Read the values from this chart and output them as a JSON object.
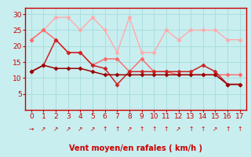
{
  "title": "",
  "xlabel": "Vent moyen/en rafales ( km/h )",
  "x": [
    0,
    1,
    2,
    3,
    4,
    5,
    6,
    7,
    8,
    9,
    10,
    11,
    12,
    13,
    14,
    15,
    16,
    17
  ],
  "line1_y": [
    22,
    25,
    29,
    29,
    25,
    29,
    25,
    18,
    29,
    18,
    18,
    25,
    22,
    25,
    25,
    25,
    22,
    22
  ],
  "line2_y": [
    22,
    25,
    22,
    18,
    18,
    14,
    16,
    16,
    12,
    16,
    12,
    12,
    11,
    11,
    11,
    11,
    11,
    11
  ],
  "line3_y": [
    12,
    14,
    22,
    18,
    18,
    14,
    13,
    8,
    12,
    12,
    12,
    12,
    12,
    12,
    14,
    12,
    8,
    8
  ],
  "line4_y": [
    12,
    14,
    13,
    13,
    13,
    12,
    11,
    11,
    11,
    11,
    11,
    11,
    11,
    11,
    11,
    11,
    8,
    8
  ],
  "line1_color": "#ffaaaa",
  "line2_color": "#ff6666",
  "line3_color": "#cc2222",
  "line4_color": "#990000",
  "bg_color": "#c8eef0",
  "grid_color": "#aadddd",
  "axis_color": "#cc0000",
  "text_color": "#cc0000",
  "ylim": [
    0,
    32
  ],
  "yticks": [
    5,
    10,
    15,
    20,
    25,
    30
  ],
  "wind_arrows": [
    "→",
    "↗",
    "↗",
    "↗",
    "↗",
    "↗",
    "↑",
    "↑",
    "↗",
    "↑",
    "↑",
    "↑",
    "↗",
    "↑",
    "↑",
    "↗",
    "↑",
    "↑"
  ],
  "marker": "D",
  "markersize": 2.5
}
